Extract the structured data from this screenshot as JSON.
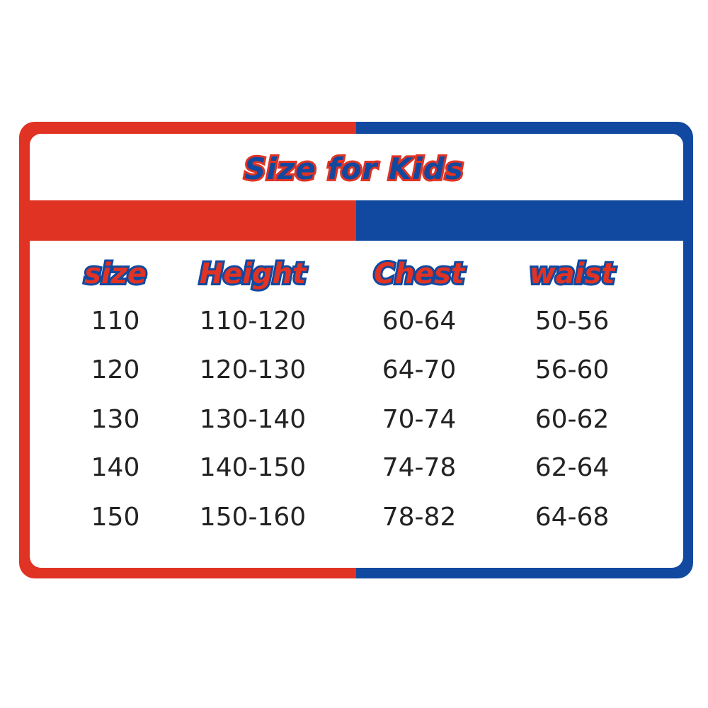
{
  "title": "Size for Kids",
  "colors": {
    "red": "#e03323",
    "blue": "#1149a0"
  },
  "table": {
    "headers": [
      "size",
      "Height",
      "Chest",
      "waist"
    ],
    "rows": [
      [
        "110",
        "110-120",
        "60-64",
        "50-56"
      ],
      [
        "120",
        "120-130",
        "64-70",
        "56-60"
      ],
      [
        "130",
        "130-140",
        "70-74",
        "60-62"
      ],
      [
        "140",
        "140-150",
        "74-78",
        "62-64"
      ],
      [
        "150",
        "150-160",
        "78-82",
        "64-68"
      ]
    ]
  }
}
